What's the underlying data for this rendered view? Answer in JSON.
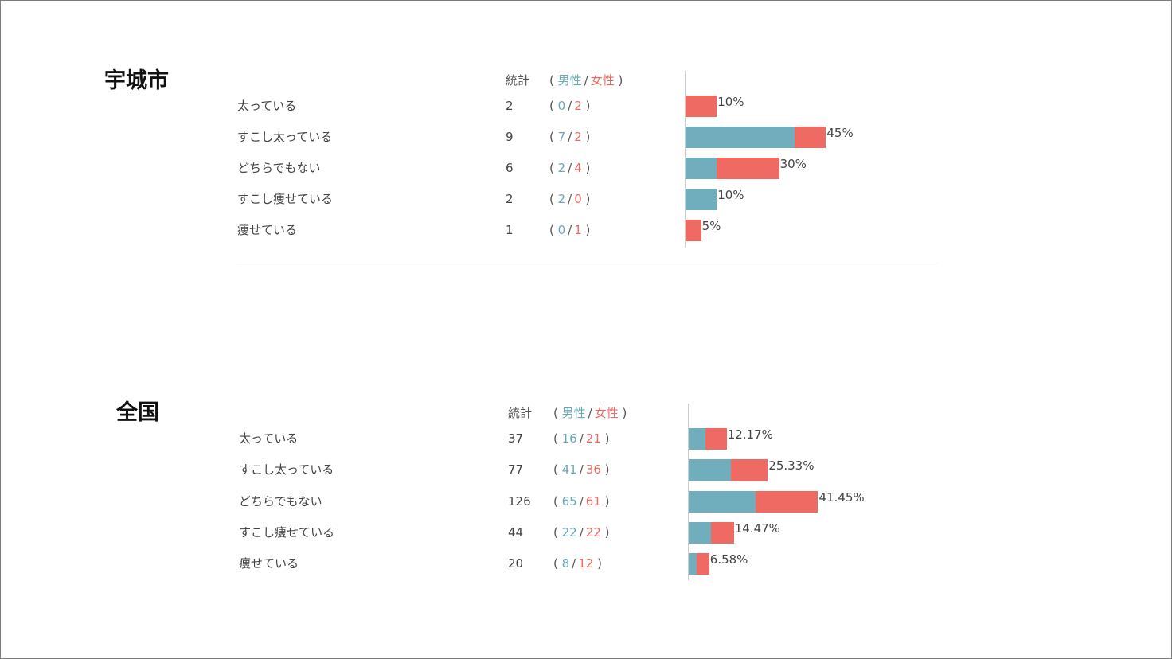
{
  "chart_data": [
    {
      "type": "bar",
      "title": "宇城市",
      "headers": {
        "total": "統計",
        "male": "男性",
        "female": "女性"
      },
      "categories": [
        "太っている",
        "すこし太っている",
        "どちらでもない",
        "すこし痩せている",
        "痩せている"
      ],
      "totals": [
        2,
        9,
        6,
        2,
        1
      ],
      "series": [
        {
          "name": "男性",
          "values": [
            0,
            7,
            2,
            2,
            0
          ]
        },
        {
          "name": "女性",
          "values": [
            2,
            2,
            4,
            0,
            1
          ]
        }
      ],
      "percent_labels": [
        "10%",
        "45%",
        "30%",
        "10%",
        "5%"
      ],
      "percent_values": [
        10,
        45,
        30,
        10,
        5
      ],
      "colors": {
        "male": "#70aebe",
        "female": "#ee6a62"
      }
    },
    {
      "type": "bar",
      "title": "全国",
      "headers": {
        "total": "統計",
        "male": "男性",
        "female": "女性"
      },
      "categories": [
        "太っている",
        "すこし太っている",
        "どちらでもない",
        "すこし痩せている",
        "痩せている"
      ],
      "totals": [
        37,
        77,
        126,
        44,
        20
      ],
      "series": [
        {
          "name": "男性",
          "values": [
            16,
            41,
            65,
            22,
            8
          ]
        },
        {
          "name": "女性",
          "values": [
            21,
            36,
            61,
            22,
            12
          ]
        }
      ],
      "percent_labels": [
        "12.17%",
        "25.33%",
        "41.45%",
        "14.47%",
        "6.58%"
      ],
      "percent_values": [
        12.17,
        25.33,
        41.45,
        14.47,
        6.58
      ],
      "colors": {
        "male": "#70aebe",
        "female": "#ee6a62"
      }
    }
  ]
}
